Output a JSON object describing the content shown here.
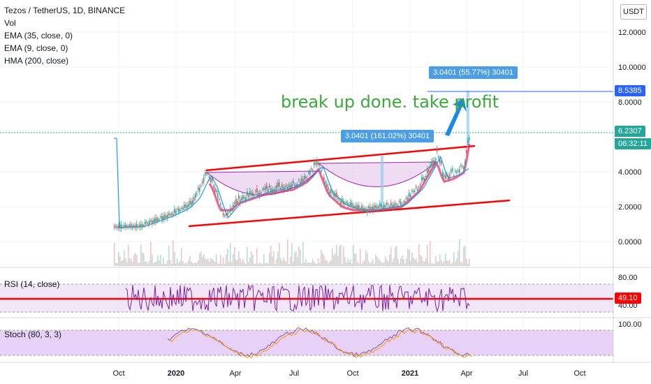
{
  "header": {
    "symbol": "Tezos / TetherUS, 1D, BINANCE",
    "indicators": [
      "Vol",
      "EMA (35, close, 0)",
      "EMA (9, close, 0)",
      "HMA (200, close)"
    ],
    "currency_button": "USDT"
  },
  "price_axis": {
    "labels": [
      "12.0000",
      "10.0000",
      "8.0000",
      "4.0000",
      "2.0000",
      "0.0000"
    ],
    "values": [
      12,
      10,
      8,
      4,
      2,
      0
    ],
    "target_badge": "8.5385",
    "target_badge_color": "#2962ff",
    "last_price_badge": "6.2307",
    "countdown": "06:32:11",
    "last_price_color": "#26a69a"
  },
  "annotations": {
    "text": "break up done. take profit",
    "measure_1": "3.0401 (161.02%) 30401",
    "measure_2": "3.0401 (55.77%) 30401",
    "text_color": "#3aa83a",
    "measure_color": "#2196f3"
  },
  "rsi_pane": {
    "label": "RSI (14, close)",
    "axis_labels": [
      "80.00",
      "40.00"
    ],
    "level_badge": "49.10",
    "level_color": "#ff0000"
  },
  "stoch_pane": {
    "label": "Stoch (80, 3, 3)",
    "axis_labels": [
      "100.00"
    ]
  },
  "time_axis": {
    "labels": [
      "Oct",
      "2020",
      "Apr",
      "Jul",
      "Oct",
      "2021",
      "Apr",
      "Jul",
      "Oct"
    ]
  },
  "colors": {
    "up": "#26a69a",
    "down": "#ef5350",
    "channel": "#ff0000",
    "cup_fill": "#e1bee7",
    "hma": "#e91e63",
    "rsi_line": "#7b1fa2",
    "rsi_band": "#ede0f5",
    "stoch_band": "#e6ccf6"
  },
  "chart_data": {
    "type": "line",
    "title": "Tezos / TetherUS, 1D, BINANCE",
    "x": [
      "Oct",
      "2020",
      "Apr",
      "Jul",
      "Oct",
      "2021",
      "Apr"
    ],
    "series": [
      {
        "name": "close",
        "values": [
          0.85,
          2.4,
          2.4,
          2.5,
          2.1,
          2.2,
          6.23
        ]
      }
    ],
    "ylim": [
      -0.5,
      12.5
    ],
    "grid": true
  }
}
